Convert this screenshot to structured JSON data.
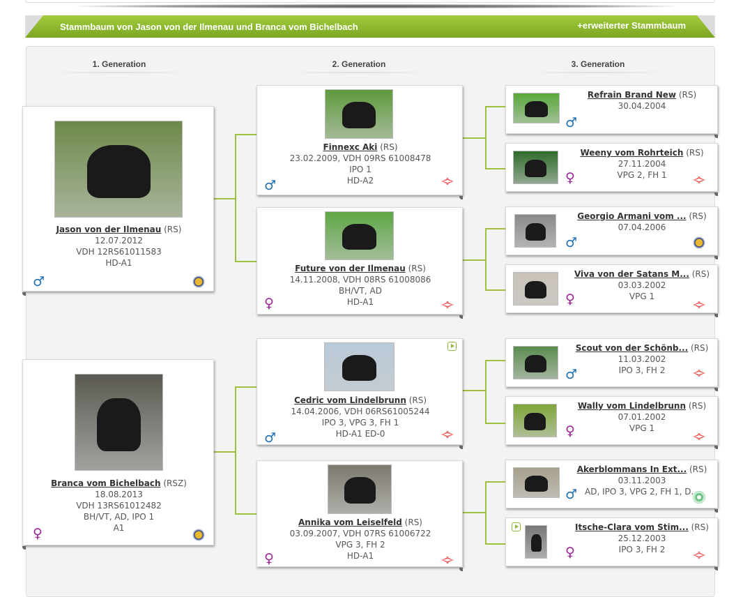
{
  "header": {
    "title": "Stammbaum von Jason von der Ilmenau und Branca vom Bichelbach",
    "extended_link": "+erweiterter Stammbaum"
  },
  "generations": [
    "1. Generation",
    "2. Generation",
    "3. Generation"
  ],
  "colors": {
    "accent": "#8cb83a",
    "male": "#1f6fb0",
    "female": "#a0239a",
    "connector": "#9dc03f"
  },
  "dogs": [
    {
      "name": "Jason von der Ilmenau",
      "breed": " (RS)",
      "lines": [
        "12.07.2012",
        "VDH 12RS61011583",
        "HD-A1"
      ],
      "sex": "male",
      "badge": "ks-icon",
      "video": false
    },
    {
      "name": "Branca vom Bichelbach",
      "breed": " (RSZ)",
      "lines": [
        "18.08.2013",
        "VDH 13RS61012482",
        "BH/VT, AD, IPO 1",
        "A1"
      ],
      "sex": "female",
      "badge": "ks-icon",
      "video": false
    },
    {
      "name": "Finnexc Aki",
      "breed": " (RS)",
      "lines": [
        "23.02.2009, VDH 09RS 61008478",
        "IPO 1",
        "HD-A2"
      ],
      "sex": "male",
      "badge": "vdh-icon",
      "video": false
    },
    {
      "name": "Future von der Ilmenau",
      "breed": " (RS)",
      "lines": [
        "14.11.2008, VDH 08RS 61008086",
        "BH/VT, AD",
        "HD-A1"
      ],
      "sex": "female",
      "badge": "vdh-icon",
      "video": false
    },
    {
      "name": "Cedric vom Lindelbrunn",
      "breed": " (RS)",
      "lines": [
        "14.04.2006, VDH 06RS61005244",
        "IPO 3, VPG 3, FH 1",
        "HD-A1 ED-0"
      ],
      "sex": "male",
      "badge": "vdh-icon",
      "video": true
    },
    {
      "name": "Annika vom Leiselfeld",
      "breed": " (RS)",
      "lines": [
        "03.09.2007, VDH 07RS 61006722",
        "VPG 3, FH 2",
        "HD-A1"
      ],
      "sex": "female",
      "badge": "vdh-icon",
      "video": false
    },
    {
      "name": "Refrain Brand New",
      "breed": " (RS)",
      "lines": [
        "30.04.2004"
      ],
      "sex": "male",
      "badge": "",
      "video": false
    },
    {
      "name": "Weeny vom Rohrteich",
      "breed": " (RS)",
      "lines": [
        "27.11.2004",
        "VPG 2, FH 1"
      ],
      "sex": "female",
      "badge": "vdh-icon",
      "video": false
    },
    {
      "name": "Georgio Armani vom ...",
      "breed": "  (RS)",
      "lines": [
        "07.04.2006"
      ],
      "sex": "male",
      "badge": "ks-icon",
      "video": false
    },
    {
      "name": "Viva von der Satans M...",
      "breed": " (RS)",
      "lines": [
        "03.03.2002",
        "VPG 1"
      ],
      "sex": "female",
      "badge": "vdh-icon",
      "video": false
    },
    {
      "name": "Scout von der Schönb...",
      "breed": "  (RS)",
      "lines": [
        "11.03.2002",
        "IPO 3, FH 2"
      ],
      "sex": "male",
      "badge": "vdh-icon",
      "video": false
    },
    {
      "name": "Wally vom Lindelbrunn",
      "breed": " (RS)",
      "lines": [
        "07.01.2002",
        "VPG 1"
      ],
      "sex": "female",
      "badge": "vdh-icon",
      "video": false
    },
    {
      "name": "Akerblommans In Ext...",
      "breed": "  (RS)",
      "lines": [
        "03.11.2003",
        "AD, IPO 3, VPG 2, FH 1, D..."
      ],
      "sex": "male",
      "badge": "green-seal-icon",
      "video": false
    },
    {
      "name": "Itsche-Clara vom Stim...",
      "breed": " (RS)",
      "lines": [
        "25.12.2003",
        "IPO 3, FH 2"
      ],
      "sex": "female",
      "badge": "vdh-icon",
      "video": true
    }
  ]
}
